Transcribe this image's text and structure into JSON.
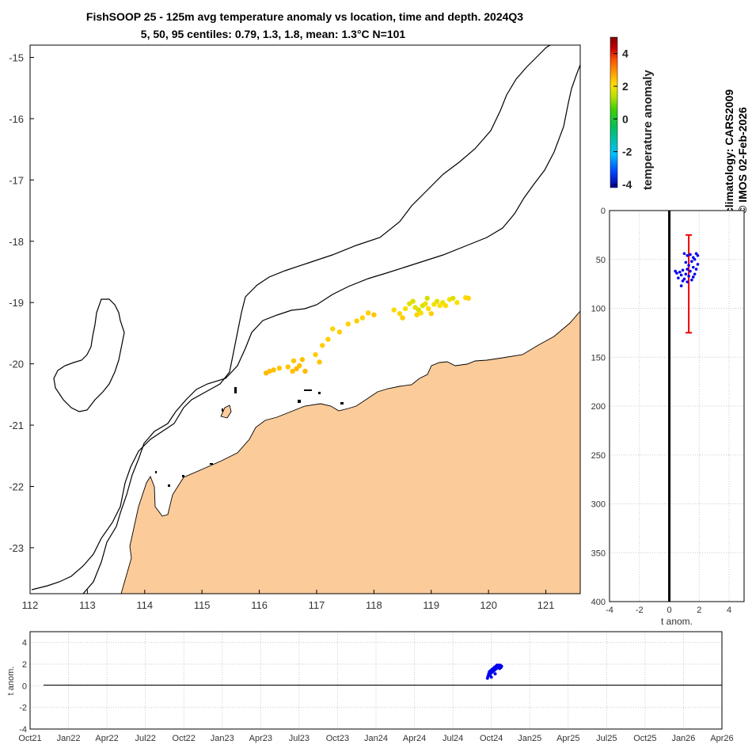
{
  "header": {
    "title_line1": "FishSOOP 25 - 125m avg temperature anomaly vs location, time and depth. 2024Q3",
    "title_line2": "5, 50, 95 centiles: 0.79, 1.3, 1.8, mean: 1.3°C N=101"
  },
  "side_notes": {
    "climatology": "climatology: CARS2009",
    "copyright": "© IMOS 02-Feb-2026"
  },
  "colors": {
    "land": "#fbcb9a",
    "coast": "#000000",
    "profile_points": "#0000ee",
    "centile_bar": "#ee0000",
    "grid": "#bdbdbd"
  },
  "chart_data": [
    {
      "id": "map",
      "type": "scatter",
      "title": "FishSOOP 25 - 125m avg temperature anomaly vs location",
      "xlabel": "",
      "ylabel": "",
      "xlim": [
        112,
        121.6
      ],
      "ylim": [
        -23.75,
        -14.8
      ],
      "xticks": [
        "112",
        "113",
        "114",
        "115",
        "116",
        "117",
        "118",
        "119",
        "120",
        "121"
      ],
      "yticks": [
        "-15",
        "-16",
        "-17",
        "-18",
        "-19",
        "-20",
        "-21",
        "-22",
        "-23"
      ],
      "points": [
        {
          "lon": 116.12,
          "lat": -20.15,
          "anom": 1.9
        },
        {
          "lon": 116.18,
          "lat": -20.12,
          "anom": 1.8
        },
        {
          "lon": 116.25,
          "lat": -20.1,
          "anom": 1.8
        },
        {
          "lon": 116.35,
          "lat": -20.07,
          "anom": 1.7
        },
        {
          "lon": 116.5,
          "lat": -20.05,
          "anom": 1.7
        },
        {
          "lon": 116.58,
          "lat": -20.12,
          "anom": 1.8
        },
        {
          "lon": 116.65,
          "lat": -20.08,
          "anom": 1.9
        },
        {
          "lon": 116.7,
          "lat": -20.03,
          "anom": 1.8
        },
        {
          "lon": 116.6,
          "lat": -19.95,
          "anom": 1.7
        },
        {
          "lon": 116.75,
          "lat": -19.93,
          "anom": 1.8
        },
        {
          "lon": 116.8,
          "lat": -20.12,
          "anom": 1.9
        },
        {
          "lon": 116.98,
          "lat": -19.85,
          "anom": 1.6
        },
        {
          "lon": 117.05,
          "lat": -19.97,
          "anom": 1.7
        },
        {
          "lon": 117.1,
          "lat": -19.7,
          "anom": 1.6
        },
        {
          "lon": 117.2,
          "lat": -19.6,
          "anom": 1.6
        },
        {
          "lon": 117.28,
          "lat": -19.43,
          "anom": 1.5
        },
        {
          "lon": 117.4,
          "lat": -19.48,
          "anom": 1.6
        },
        {
          "lon": 117.55,
          "lat": -19.35,
          "anom": 1.5
        },
        {
          "lon": 117.7,
          "lat": -19.3,
          "anom": 1.6
        },
        {
          "lon": 117.8,
          "lat": -19.25,
          "anom": 1.5
        },
        {
          "lon": 117.9,
          "lat": -19.17,
          "anom": 1.6
        },
        {
          "lon": 118.0,
          "lat": -19.2,
          "anom": 1.7
        },
        {
          "lon": 118.35,
          "lat": -19.12,
          "anom": 1.4
        },
        {
          "lon": 118.45,
          "lat": -19.18,
          "anom": 1.5
        },
        {
          "lon": 118.5,
          "lat": -19.25,
          "anom": 1.6
        },
        {
          "lon": 118.55,
          "lat": -19.1,
          "anom": 1.2
        },
        {
          "lon": 118.62,
          "lat": -19.02,
          "anom": 1.0
        },
        {
          "lon": 118.68,
          "lat": -18.98,
          "anom": 0.9
        },
        {
          "lon": 118.72,
          "lat": -19.08,
          "anom": 1.0
        },
        {
          "lon": 118.75,
          "lat": -19.2,
          "anom": 1.5
        },
        {
          "lon": 118.78,
          "lat": -19.12,
          "anom": 0.8
        },
        {
          "lon": 118.82,
          "lat": -19.17,
          "anom": 1.2
        },
        {
          "lon": 118.85,
          "lat": -19.05,
          "anom": 0.9
        },
        {
          "lon": 118.9,
          "lat": -19.02,
          "anom": 1.1
        },
        {
          "lon": 118.93,
          "lat": -18.93,
          "anom": 0.8
        },
        {
          "lon": 118.95,
          "lat": -19.1,
          "anom": 1.4
        },
        {
          "lon": 119.0,
          "lat": -19.18,
          "anom": 1.6
        },
        {
          "lon": 119.05,
          "lat": -19.03,
          "anom": 1.2
        },
        {
          "lon": 119.1,
          "lat": -18.98,
          "anom": 1.0
        },
        {
          "lon": 119.15,
          "lat": -19.05,
          "anom": 1.3
        },
        {
          "lon": 119.2,
          "lat": -19.0,
          "anom": 1.1
        },
        {
          "lon": 119.25,
          "lat": -19.05,
          "anom": 1.4
        },
        {
          "lon": 119.32,
          "lat": -18.95,
          "anom": 1.2
        },
        {
          "lon": 119.38,
          "lat": -18.93,
          "anom": 0.9
        },
        {
          "lon": 119.45,
          "lat": -19.0,
          "anom": 1.3
        },
        {
          "lon": 119.6,
          "lat": -18.92,
          "anom": 1.4
        },
        {
          "lon": 119.65,
          "lat": -18.93,
          "anom": 1.5
        }
      ]
    },
    {
      "id": "colorbar",
      "type": "heatmap",
      "label": "temperature anomaly",
      "range": [
        -4.2,
        5
      ],
      "ticks": [
        "-4",
        "-2",
        "0",
        "2",
        "4"
      ],
      "colors": [
        "#00008f",
        "#0040ff",
        "#00c0ff",
        "#00c060",
        "#40d000",
        "#b0e000",
        "#ffe000",
        "#ffa000",
        "#ff5000",
        "#c00000",
        "#800000"
      ]
    },
    {
      "id": "depth_profile",
      "type": "scatter",
      "xlabel": "t anom.",
      "ylabel": "",
      "xlim": [
        -4,
        5
      ],
      "ylim": [
        400,
        0
      ],
      "xticks": [
        "-4",
        "-2",
        "0",
        "2",
        "4"
      ],
      "yticks": [
        "0",
        "50",
        "100",
        "150",
        "200",
        "250",
        "300",
        "350",
        "400"
      ],
      "centile_bar": {
        "x": 1.3,
        "top": 25,
        "bottom": 125
      },
      "points": [
        {
          "t": 1.0,
          "d": 44
        },
        {
          "t": 1.2,
          "d": 46
        },
        {
          "t": 1.4,
          "d": 45
        },
        {
          "t": 1.6,
          "d": 48
        },
        {
          "t": 1.8,
          "d": 44
        },
        {
          "t": 1.9,
          "d": 46
        },
        {
          "t": 1.7,
          "d": 50
        },
        {
          "t": 1.5,
          "d": 52
        },
        {
          "t": 1.9,
          "d": 55
        },
        {
          "t": 1.6,
          "d": 58
        },
        {
          "t": 1.8,
          "d": 60
        },
        {
          "t": 1.4,
          "d": 62
        },
        {
          "t": 1.2,
          "d": 60
        },
        {
          "t": 0.9,
          "d": 61
        },
        {
          "t": 0.7,
          "d": 63
        },
        {
          "t": 0.5,
          "d": 64
        },
        {
          "t": 0.8,
          "d": 66
        },
        {
          "t": 1.1,
          "d": 65
        },
        {
          "t": 1.3,
          "d": 67
        },
        {
          "t": 1.6,
          "d": 68
        },
        {
          "t": 1.0,
          "d": 70
        },
        {
          "t": 0.6,
          "d": 69
        },
        {
          "t": 0.9,
          "d": 72
        },
        {
          "t": 1.2,
          "d": 73
        },
        {
          "t": 1.5,
          "d": 71
        },
        {
          "t": 1.7,
          "d": 65
        },
        {
          "t": 1.3,
          "d": 56
        },
        {
          "t": 1.1,
          "d": 53
        },
        {
          "t": 0.4,
          "d": 62
        },
        {
          "t": 0.8,
          "d": 77
        }
      ]
    },
    {
      "id": "time_series",
      "type": "scatter",
      "xlabel": "",
      "ylabel": "t anom.",
      "ylim": [
        -4,
        5
      ],
      "yticks": [
        "4",
        "2",
        "0",
        "-2",
        "-4"
      ],
      "xticks": [
        "Oct21",
        "Jan22",
        "Apr22",
        "Jul22",
        "Oct22",
        "Jan23",
        "Apr23",
        "Jul23",
        "Oct23",
        "Jan24",
        "Apr24",
        "Jul24",
        "Oct24",
        "Jan25",
        "Apr25",
        "Jul25",
        "Oct25",
        "Jan26",
        "Apr26"
      ],
      "points": [
        {
          "month": 35.7,
          "t": 0.7
        },
        {
          "month": 35.75,
          "t": 0.9
        },
        {
          "month": 35.8,
          "t": 1.1
        },
        {
          "month": 35.85,
          "t": 1.3
        },
        {
          "month": 35.9,
          "t": 1.0
        },
        {
          "month": 35.95,
          "t": 1.4
        },
        {
          "month": 36.0,
          "t": 1.2
        },
        {
          "month": 36.05,
          "t": 1.5
        },
        {
          "month": 36.1,
          "t": 1.3
        },
        {
          "month": 36.15,
          "t": 1.6
        },
        {
          "month": 36.2,
          "t": 1.4
        },
        {
          "month": 36.25,
          "t": 1.7
        },
        {
          "month": 36.3,
          "t": 1.5
        },
        {
          "month": 36.35,
          "t": 1.8
        },
        {
          "month": 36.4,
          "t": 1.6
        },
        {
          "month": 36.45,
          "t": 1.9
        },
        {
          "month": 36.5,
          "t": 1.7
        },
        {
          "month": 36.55,
          "t": 1.9
        },
        {
          "month": 36.6,
          "t": 1.8
        },
        {
          "month": 36.65,
          "t": 1.6
        },
        {
          "month": 36.7,
          "t": 1.9
        },
        {
          "month": 36.75,
          "t": 1.7
        },
        {
          "month": 36.8,
          "t": 1.8
        },
        {
          "month": 36.0,
          "t": 0.8
        },
        {
          "month": 36.3,
          "t": 1.1
        }
      ]
    }
  ]
}
